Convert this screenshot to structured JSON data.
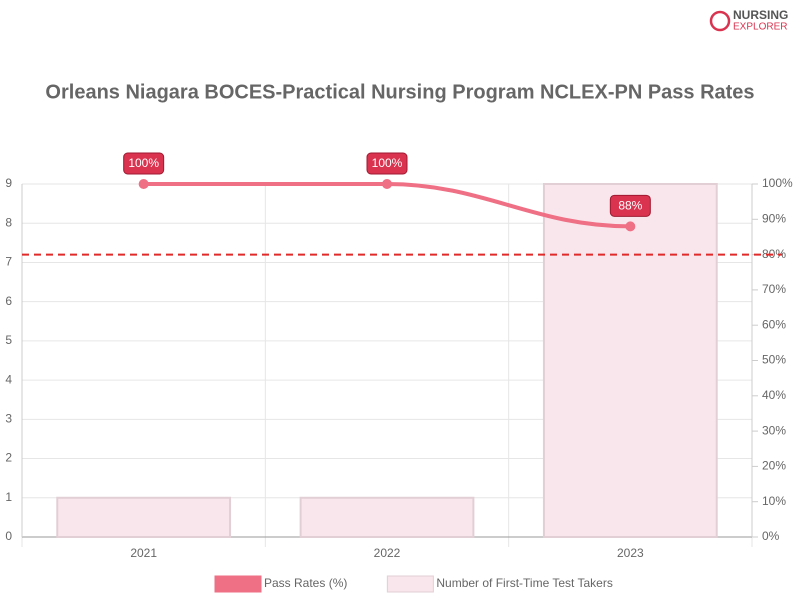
{
  "logo": {
    "line1": "NURSING",
    "line2": "EXPLORER"
  },
  "chart_data": {
    "type": "bar-line",
    "title": "Orleans Niagara BOCES-Practical Nursing Program NCLEX-PN Pass Rates",
    "categories": [
      "2021",
      "2022",
      "2023"
    ],
    "series": [
      {
        "name": "Pass Rates (%)",
        "type": "line",
        "axis": "y2",
        "color": "#ef6f85",
        "values": [
          100,
          100,
          88
        ],
        "value_labels": [
          "100%",
          "100%",
          "88%"
        ]
      },
      {
        "name": "Number of First-Time Test Takers",
        "type": "bar",
        "axis": "y",
        "color": "#f8e6ec",
        "values": [
          1,
          1,
          9
        ]
      }
    ],
    "reference_line": {
      "value": 80,
      "axis": "y2",
      "color": "#e02a2a"
    },
    "ylim": [
      0,
      9
    ],
    "yticks": [
      0,
      1,
      2,
      3,
      4,
      5,
      6,
      7,
      8,
      9
    ],
    "y2lim": [
      0,
      100
    ],
    "y2ticks": [
      {
        "value": 0,
        "label": "0%"
      },
      {
        "value": 10,
        "label": "10%"
      },
      {
        "value": 20,
        "label": "20%"
      },
      {
        "value": 30,
        "label": "30%"
      },
      {
        "value": 40,
        "label": "40%"
      },
      {
        "value": 50,
        "label": "50%"
      },
      {
        "value": 60,
        "label": "60%"
      },
      {
        "value": 70,
        "label": "70%"
      },
      {
        "value": 80,
        "label": "80%"
      },
      {
        "value": 90,
        "label": "90%"
      },
      {
        "value": 100,
        "label": "100%"
      }
    ],
    "grid": true
  }
}
